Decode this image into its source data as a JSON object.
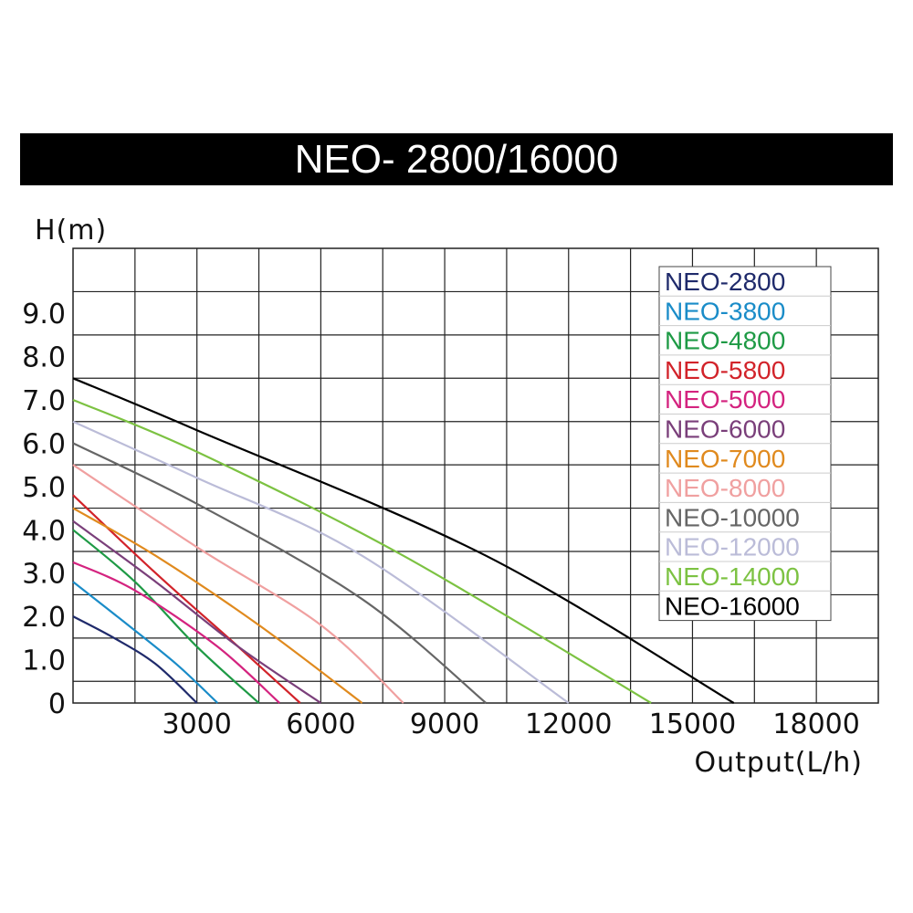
{
  "chart_data": {
    "type": "line",
    "title": "NEO- 2800/16000",
    "xlabel": "Output(L/h)",
    "ylabel": "H(m)",
    "xlim": [
      0,
      19500
    ],
    "ylim": [
      0,
      10.5
    ],
    "x_ticks": [
      3000,
      6000,
      9000,
      12000,
      15000,
      18000
    ],
    "x_tick_labels": [
      "3000",
      "6000",
      "9000",
      "12000",
      "15000",
      "18000"
    ],
    "y_ticks": [
      0,
      1,
      2,
      3,
      4,
      5,
      6,
      7,
      8,
      9
    ],
    "y_tick_labels": [
      "0",
      "1.0",
      "2.0",
      "3.0",
      "4.0",
      "5.0",
      "6.0",
      "7.0",
      "8.0",
      "9.0"
    ],
    "grid": true,
    "legend_position": "top-right",
    "series": [
      {
        "name": "NEO-2800",
        "color": "#1f2a6b",
        "points": [
          [
            0,
            2.0
          ],
          [
            1000,
            1.5
          ],
          [
            2000,
            0.9
          ],
          [
            3000,
            0.0
          ]
        ]
      },
      {
        "name": "NEO-3800",
        "color": "#1a8cc8",
        "points": [
          [
            0,
            2.8
          ],
          [
            1200,
            1.9
          ],
          [
            2500,
            0.9
          ],
          [
            3500,
            0.0
          ]
        ]
      },
      {
        "name": "NEO-4800",
        "color": "#1e9a45",
        "points": [
          [
            0,
            4.0
          ],
          [
            1500,
            2.8
          ],
          [
            3000,
            1.3
          ],
          [
            4500,
            0.0
          ]
        ]
      },
      {
        "name": "NEO-5800",
        "color": "#d2232a",
        "points": [
          [
            0,
            4.8
          ],
          [
            2000,
            3.0
          ],
          [
            4000,
            1.3
          ],
          [
            5500,
            0.0
          ]
        ]
      },
      {
        "name": "NEO-5000",
        "color": "#d4237f",
        "points": [
          [
            0,
            3.25
          ],
          [
            1500,
            2.6
          ],
          [
            3500,
            1.3
          ],
          [
            5000,
            0.0
          ]
        ]
      },
      {
        "name": "NEO-6000",
        "color": "#7a3f7a",
        "points": [
          [
            0,
            4.2
          ],
          [
            2000,
            2.8
          ],
          [
            4000,
            1.3
          ],
          [
            6000,
            0.0
          ]
        ]
      },
      {
        "name": "NEO-7000",
        "color": "#e08a1e",
        "points": [
          [
            0,
            4.5
          ],
          [
            2000,
            3.4
          ],
          [
            4500,
            1.8
          ],
          [
            7000,
            0.0
          ]
        ]
      },
      {
        "name": "NEO-8000",
        "color": "#f0a0a0",
        "points": [
          [
            0,
            5.5
          ],
          [
            3000,
            3.6
          ],
          [
            6000,
            1.8
          ],
          [
            8000,
            0.0
          ]
        ]
      },
      {
        "name": "NEO-10000",
        "color": "#666666",
        "points": [
          [
            0,
            6.0
          ],
          [
            3000,
            4.6
          ],
          [
            7000,
            2.4
          ],
          [
            10000,
            0.0
          ]
        ]
      },
      {
        "name": "NEO-12000",
        "color": "#bbbcd8",
        "points": [
          [
            0,
            6.5
          ],
          [
            3000,
            5.2
          ],
          [
            7000,
            3.4
          ],
          [
            12000,
            0.0
          ]
        ]
      },
      {
        "name": "NEO-14000",
        "color": "#7cc242",
        "points": [
          [
            0,
            7.0
          ],
          [
            3000,
            5.8
          ],
          [
            8000,
            3.4
          ],
          [
            14000,
            0.0
          ]
        ]
      },
      {
        "name": "NEO-16000",
        "color": "#000000",
        "points": [
          [
            0,
            7.5
          ],
          [
            3000,
            6.3
          ],
          [
            10000,
            3.4
          ],
          [
            16000,
            0.0
          ]
        ]
      }
    ]
  }
}
